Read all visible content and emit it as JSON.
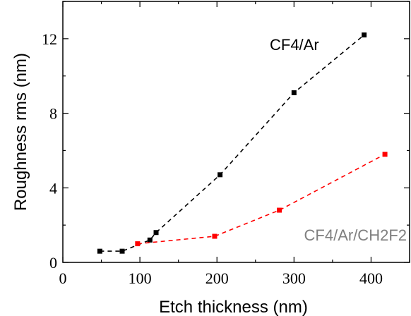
{
  "chart_data": {
    "type": "line",
    "title": "",
    "xlabel": "Etch thickness (nm)",
    "ylabel": "Roughness rms (nm)",
    "xlim": [
      0,
      450
    ],
    "ylim": [
      0,
      14
    ],
    "x_ticks": [
      0,
      100,
      200,
      300,
      400
    ],
    "y_ticks": [
      0,
      4,
      8,
      12
    ],
    "grid": false,
    "line_style": "dashed",
    "marker": "square",
    "series": [
      {
        "name": "CF4/Ar",
        "color": "#000000",
        "label_color": "#000000",
        "x": [
          48,
          77,
          113,
          121,
          204,
          300,
          391
        ],
        "y": [
          0.6,
          0.6,
          1.2,
          1.6,
          4.7,
          9.1,
          12.2
        ]
      },
      {
        "name": "CF4/Ar/CH2F2",
        "color": "#ff0000",
        "label_color": "#808080",
        "x": [
          97,
          197,
          281,
          418
        ],
        "y": [
          1.0,
          1.4,
          2.8,
          5.8
        ]
      }
    ]
  }
}
